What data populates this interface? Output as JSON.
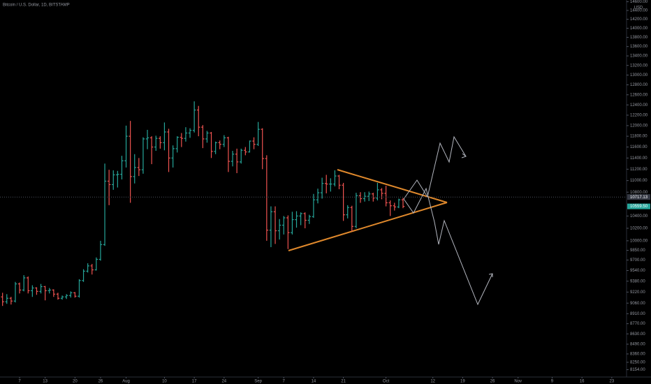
{
  "chart_data": {
    "type": "ohlc",
    "title": "Bitcoin / U.S. Dollar, 1D, BITSTAMP",
    "currency": "USD",
    "log_scale": true,
    "up_color": "#26a69a",
    "down_color": "#ef5350",
    "ohlc": [
      [
        9150,
        9210,
        9020,
        9080
      ],
      [
        9080,
        9190,
        9050,
        9130
      ],
      [
        9130,
        9150,
        9040,
        9090
      ],
      [
        9090,
        9370,
        9070,
        9340
      ],
      [
        9340,
        9360,
        9200,
        9250
      ],
      [
        9250,
        9470,
        9230,
        9430
      ],
      [
        9430,
        9450,
        9200,
        9240
      ],
      [
        9240,
        9320,
        9150,
        9280
      ],
      [
        9280,
        9290,
        9180,
        9230
      ],
      [
        9230,
        9340,
        9200,
        9300
      ],
      [
        9300,
        9310,
        9100,
        9240
      ],
      [
        9240,
        9280,
        9200,
        9250
      ],
      [
        9250,
        9260,
        9150,
        9190
      ],
      [
        9190,
        9210,
        9110,
        9130
      ],
      [
        9130,
        9170,
        9110,
        9150
      ],
      [
        9150,
        9190,
        9120,
        9170
      ],
      [
        9170,
        9230,
        9140,
        9210
      ],
      [
        9210,
        9220,
        9140,
        9160
      ],
      [
        9160,
        9410,
        9140,
        9390
      ],
      [
        9390,
        9560,
        9370,
        9530
      ],
      [
        9530,
        9650,
        9510,
        9610
      ],
      [
        9610,
        9640,
        9480,
        9550
      ],
      [
        9550,
        9740,
        9540,
        9710
      ],
      [
        9710,
        10000,
        9690,
        9940
      ],
      [
        9940,
        11300,
        9920,
        10990
      ],
      [
        10990,
        11190,
        10580,
        10930
      ],
      [
        10930,
        11180,
        10840,
        11100
      ],
      [
        11100,
        11170,
        10880,
        11110
      ],
      [
        11110,
        11440,
        11020,
        11350
      ],
      [
        11350,
        12000,
        11230,
        11800
      ],
      [
        11800,
        12090,
        10620,
        11070
      ],
      [
        11070,
        11470,
        10950,
        11230
      ],
      [
        11230,
        11400,
        11080,
        11190
      ],
      [
        11190,
        11780,
        11120,
        11750
      ],
      [
        11750,
        11920,
        11560,
        11770
      ],
      [
        11770,
        11800,
        11290,
        11600
      ],
      [
        11600,
        11810,
        11530,
        11760
      ],
      [
        11760,
        11800,
        11570,
        11680
      ],
      [
        11680,
        12060,
        11540,
        11880
      ],
      [
        11880,
        11940,
        11150,
        11400
      ],
      [
        11400,
        11630,
        11230,
        11570
      ],
      [
        11570,
        11800,
        11500,
        11780
      ],
      [
        11780,
        11860,
        11600,
        11760
      ],
      [
        11760,
        11970,
        11700,
        11860
      ],
      [
        11860,
        11950,
        11770,
        11910
      ],
      [
        11910,
        12470,
        11870,
        12300
      ],
      [
        12300,
        12380,
        11800,
        11970
      ],
      [
        11970,
        12010,
        11580,
        11750
      ],
      [
        11750,
        11900,
        11680,
        11860
      ],
      [
        11860,
        11880,
        11400,
        11520
      ],
      [
        11520,
        11700,
        11470,
        11680
      ],
      [
        11680,
        11720,
        11560,
        11650
      ],
      [
        11650,
        11820,
        11600,
        11770
      ],
      [
        11770,
        11790,
        11150,
        11340
      ],
      [
        11340,
        11530,
        11250,
        11470
      ],
      [
        11470,
        11570,
        11130,
        11330
      ],
      [
        11330,
        11570,
        11300,
        11540
      ],
      [
        11540,
        11600,
        11450,
        11510
      ],
      [
        11510,
        11720,
        11500,
        11710
      ],
      [
        11710,
        11780,
        11560,
        11650
      ],
      [
        11650,
        12070,
        11620,
        11930
      ],
      [
        11930,
        11950,
        11200,
        11390
      ],
      [
        11390,
        11450,
        10000,
        10170
      ],
      [
        10170,
        10560,
        9900,
        10470
      ],
      [
        10470,
        10560,
        9950,
        10160
      ],
      [
        10160,
        10350,
        10020,
        10250
      ],
      [
        10250,
        10400,
        10100,
        10370
      ],
      [
        10370,
        10410,
        9870,
        10130
      ],
      [
        10130,
        10470,
        10100,
        10340
      ],
      [
        10340,
        10480,
        10210,
        10400
      ],
      [
        10400,
        10460,
        10250,
        10440
      ],
      [
        10440,
        10460,
        10200,
        10330
      ],
      [
        10330,
        10420,
        10270,
        10390
      ],
      [
        10390,
        10770,
        10370,
        10670
      ],
      [
        10670,
        10860,
        10610,
        10790
      ],
      [
        10790,
        11050,
        10690,
        10950
      ],
      [
        10950,
        11100,
        10780,
        10940
      ],
      [
        10940,
        11040,
        10810,
        10940
      ],
      [
        10940,
        11180,
        10900,
        11080
      ],
      [
        11080,
        11100,
        10850,
        10920
      ],
      [
        10920,
        10960,
        10320,
        10420
      ],
      [
        10420,
        10580,
        10360,
        10540
      ],
      [
        10540,
        10570,
        10150,
        10230
      ],
      [
        10230,
        10790,
        10200,
        10740
      ],
      [
        10740,
        10800,
        10620,
        10690
      ],
      [
        10690,
        10800,
        10640,
        10730
      ],
      [
        10730,
        10810,
        10650,
        10770
      ],
      [
        10770,
        10790,
        10640,
        10700
      ],
      [
        10700,
        10960,
        10660,
        10840
      ],
      [
        10840,
        10870,
        10680,
        10780
      ],
      [
        10780,
        10910,
        10560,
        10620
      ],
      [
        10620,
        10660,
        10400,
        10570
      ],
      [
        10570,
        10620,
        10490,
        10550
      ],
      [
        10550,
        10690,
        10530,
        10670
      ],
      [
        10670,
        10700,
        10530,
        10560
      ]
    ],
    "xlim": [
      -0.6,
      146.3
    ],
    "xticks": [
      {
        "value": 4,
        "label": "7"
      },
      {
        "value": 10,
        "label": "13"
      },
      {
        "value": 17,
        "label": "20"
      },
      {
        "value": 23,
        "label": "26"
      },
      {
        "value": 29,
        "label": "Aug"
      },
      {
        "value": 38,
        "label": "10"
      },
      {
        "value": 45,
        "label": "17"
      },
      {
        "value": 52,
        "label": "24"
      },
      {
        "value": 60,
        "label": "Sep"
      },
      {
        "value": 66,
        "label": "7"
      },
      {
        "value": 73,
        "label": "14"
      },
      {
        "value": 80,
        "label": "21"
      },
      {
        "value": 90,
        "label": "Oct"
      },
      {
        "value": 101,
        "label": "12"
      },
      {
        "value": 108,
        "label": "19"
      },
      {
        "value": 115,
        "label": "26"
      },
      {
        "value": 121,
        "label": "Nov"
      },
      {
        "value": 129,
        "label": "9"
      },
      {
        "value": 136,
        "label": "16"
      },
      {
        "value": 143,
        "label": "23"
      }
    ],
    "ylim": [
      8060,
      14640
    ],
    "yticks": [
      {
        "value": 14600,
        "label": "14600.00"
      },
      {
        "value": 14400,
        "label": "14400.00"
      },
      {
        "value": 14200,
        "label": "14200.00"
      },
      {
        "value": 14000,
        "label": "14000.00"
      },
      {
        "value": 13800,
        "label": "13800.00"
      },
      {
        "value": 13600,
        "label": "13600.00"
      },
      {
        "value": 13400,
        "label": "13400.00"
      },
      {
        "value": 13200,
        "label": "13200.00"
      },
      {
        "value": 13000,
        "label": "13000.00"
      },
      {
        "value": 12800,
        "label": "12800.00"
      },
      {
        "value": 12600,
        "label": "12600.00"
      },
      {
        "value": 12400,
        "label": "12400.00"
      },
      {
        "value": 12200,
        "label": "12200.00"
      },
      {
        "value": 12000,
        "label": "12000.00"
      },
      {
        "value": 11800,
        "label": "11800.00"
      },
      {
        "value": 11600,
        "label": "11600.00"
      },
      {
        "value": 11400,
        "label": "11400.00"
      },
      {
        "value": 11200,
        "label": "11200.00"
      },
      {
        "value": 11000,
        "label": "11000.00"
      },
      {
        "value": 10800,
        "label": "10800.00"
      },
      {
        "value": 10400,
        "label": "10400.00"
      },
      {
        "value": 10200,
        "label": "10200.00"
      },
      {
        "value": 10000,
        "label": "10000.00"
      },
      {
        "value": 9850,
        "label": "9850.00"
      },
      {
        "value": 9700,
        "label": "9700.00"
      },
      {
        "value": 9540,
        "label": "9540.00"
      },
      {
        "value": 9380,
        "label": "9380.00"
      },
      {
        "value": 9220,
        "label": "9220.00"
      },
      {
        "value": 9060,
        "label": "9060.00"
      },
      {
        "value": 8910,
        "label": "8910.00"
      },
      {
        "value": 8770,
        "label": "8770.00"
      },
      {
        "value": 8630,
        "label": "8630.00"
      },
      {
        "value": 8490,
        "label": "8490.00"
      },
      {
        "value": 8360,
        "label": "8360.00"
      },
      {
        "value": 8250,
        "label": "8250.00"
      },
      {
        "value": 8154,
        "label": "8154.00"
      }
    ],
    "price_labels": [
      {
        "value": 10717.13,
        "label": "10717.13",
        "color": "#363a45"
      },
      {
        "value": 10559.5,
        "label": "10559.50",
        "color": "#26a69a"
      }
    ]
  }
}
